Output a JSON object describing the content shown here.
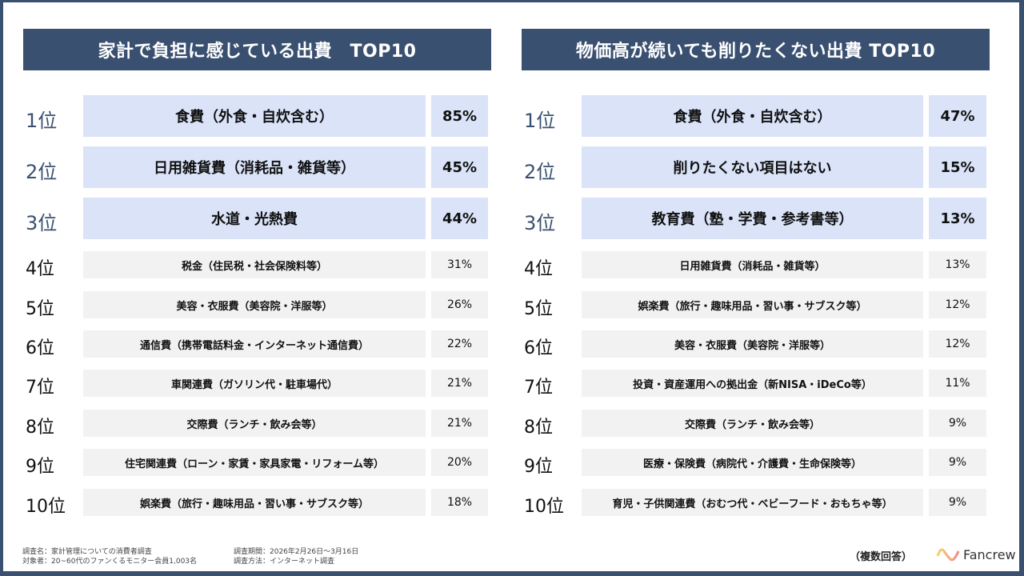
{
  "left": {
    "title": "家計で負担に感じている出費　TOP10",
    "items": [
      {
        "rank": "1位",
        "label": "食費（外食・自炊含む）",
        "pct": "85%"
      },
      {
        "rank": "2位",
        "label": "日用雑貨費（消耗品・雑貨等）",
        "pct": "45%"
      },
      {
        "rank": "3位",
        "label": "水道・光熱費",
        "pct": "44%"
      },
      {
        "rank": "4位",
        "label": "税金（住民税・社会保険料等）",
        "pct": "31%"
      },
      {
        "rank": "5位",
        "label": "美容・衣服費（美容院・洋服等）",
        "pct": "26%"
      },
      {
        "rank": "6位",
        "label": "通信費（携帯電話料金・インターネット通信費）",
        "pct": "22%"
      },
      {
        "rank": "7位",
        "label": "車関連費（ガソリン代・駐車場代）",
        "pct": "21%"
      },
      {
        "rank": "8位",
        "label": "交際費（ランチ・飲み会等）",
        "pct": "21%"
      },
      {
        "rank": "9位",
        "label": "住宅関連費（ローン・家賃・家具家電・リフォーム等）",
        "pct": "20%"
      },
      {
        "rank": "10位",
        "label": "娯楽費（旅行・趣味用品・習い事・サブスク等）",
        "pct": "18%"
      }
    ]
  },
  "right": {
    "title": "物価高が続いても削りたくない出費 TOP10",
    "items": [
      {
        "rank": "1位",
        "label": "食費（外食・自炊含む）",
        "pct": "47%"
      },
      {
        "rank": "2位",
        "label": "削りたくない項目はない",
        "pct": "15%"
      },
      {
        "rank": "3位",
        "label": "教育費（塾・学費・参考書等）",
        "pct": "13%"
      },
      {
        "rank": "4位",
        "label": "日用雑貨費（消耗品・雑貨等）",
        "pct": "13%"
      },
      {
        "rank": "5位",
        "label": "娯楽費（旅行・趣味用品・習い事・サブスク等）",
        "pct": "12%"
      },
      {
        "rank": "6位",
        "label": "美容・衣服費（美容院・洋服等）",
        "pct": "12%"
      },
      {
        "rank": "7位",
        "label": "投資・資産運用への拠出金（新NISA・iDeCo等）",
        "pct": "11%"
      },
      {
        "rank": "8位",
        "label": "交際費（ランチ・飲み会等）",
        "pct": "9%"
      },
      {
        "rank": "9位",
        "label": "医療・保険費（病院代・介護費・生命保険等）",
        "pct": "9%"
      },
      {
        "rank": "10位",
        "label": "育児・子供関連費（おむつ代・ベビーフード・おもちゃ等）",
        "pct": "9%"
      }
    ]
  },
  "footer": {
    "survey_name": "調査名：家計管理についての消費者調査",
    "target": "対象者：20~60代のファンくるモニター会員1,003名",
    "period": "調査期間：2026年2月26日～3月16日",
    "method": "調査方法：インターネット調査",
    "note": "（複数回答）",
    "brand": "Fancrew"
  },
  "colors": {
    "frame": "#3a5070",
    "top3": "#dae3f8",
    "rest": "#f2f2f2"
  }
}
